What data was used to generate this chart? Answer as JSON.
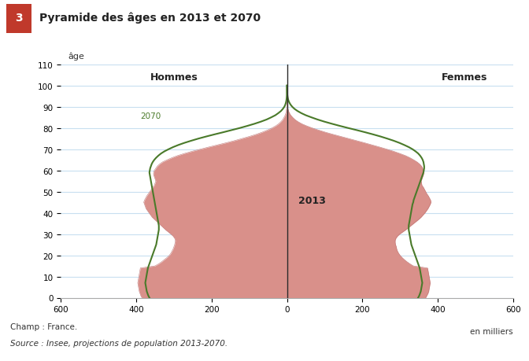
{
  "title": "Pyramide des âges en 2013 et 2070",
  "title_number": "3",
  "ylabel": "âge",
  "xlabel_right": "en milliers",
  "hommes_label": "Hommes",
  "femmes_label": "Femmes",
  "label_2013": "2013",
  "label_2070": "2070",
  "source_line1": "Champ : France.",
  "source_line2": "Source : Insee, projections de population 2013-2070.",
  "xlim": 600,
  "ylim": 110,
  "bar_color": "#d9908a",
  "line_color_2070": "#4a7a2a",
  "background_color": "#ffffff",
  "grid_color": "#c8dff0",
  "header_bg": "#f5ede8",
  "number_bg": "#c0392b",
  "ages": [
    0,
    1,
    2,
    3,
    4,
    5,
    6,
    7,
    8,
    9,
    10,
    11,
    12,
    13,
    14,
    15,
    16,
    17,
    18,
    19,
    20,
    21,
    22,
    23,
    24,
    25,
    26,
    27,
    28,
    29,
    30,
    31,
    32,
    33,
    34,
    35,
    36,
    37,
    38,
    39,
    40,
    41,
    42,
    43,
    44,
    45,
    46,
    47,
    48,
    49,
    50,
    51,
    52,
    53,
    54,
    55,
    56,
    57,
    58,
    59,
    60,
    61,
    62,
    63,
    64,
    65,
    66,
    67,
    68,
    69,
    70,
    71,
    72,
    73,
    74,
    75,
    76,
    77,
    78,
    79,
    80,
    81,
    82,
    83,
    84,
    85,
    86,
    87,
    88,
    89,
    90,
    91,
    92,
    93,
    94,
    95,
    96,
    97,
    98,
    99,
    100
  ],
  "men_2013": [
    385,
    388,
    390,
    392,
    393,
    394,
    395,
    396,
    395,
    394,
    393,
    392,
    391,
    390,
    389,
    350,
    340,
    332,
    325,
    318,
    312,
    308,
    305,
    302,
    300,
    298,
    297,
    296,
    298,
    302,
    308,
    315,
    322,
    328,
    334,
    340,
    346,
    352,
    358,
    362,
    366,
    370,
    374,
    376,
    378,
    380,
    378,
    375,
    372,
    368,
    364,
    360,
    356,
    352,
    350,
    348,
    350,
    352,
    354,
    354,
    352,
    348,
    344,
    338,
    330,
    318,
    305,
    290,
    272,
    252,
    230,
    208,
    185,
    162,
    140,
    120,
    100,
    82,
    66,
    52,
    40,
    30,
    22,
    16,
    11,
    8,
    5,
    3,
    2,
    1.2,
    0.7,
    0.4,
    0.2,
    0.1,
    0.05,
    0.02,
    0.01,
    0.005,
    0.002,
    0.001,
    0.0005
  ],
  "women_2013": [
    368,
    371,
    374,
    376,
    377,
    378,
    379,
    380,
    379,
    378,
    377,
    376,
    375,
    374,
    373,
    335,
    326,
    318,
    311,
    305,
    300,
    296,
    293,
    291,
    290,
    288,
    287,
    287,
    289,
    293,
    299,
    307,
    315,
    322,
    329,
    336,
    343,
    350,
    356,
    361,
    366,
    370,
    374,
    377,
    380,
    382,
    381,
    378,
    375,
    371,
    368,
    365,
    362,
    358,
    357,
    356,
    358,
    360,
    362,
    363,
    362,
    360,
    357,
    352,
    345,
    336,
    326,
    314,
    299,
    283,
    265,
    246,
    226,
    206,
    185,
    164,
    143,
    122,
    102,
    84,
    67,
    52,
    39,
    29,
    21,
    15,
    10,
    6.5,
    4,
    2.5,
    1.5,
    0.9,
    0.5,
    0.25,
    0.12,
    0.06,
    0.02,
    0.01,
    0.004,
    0.002,
    0.0008
  ],
  "men_2070": [
    365,
    368,
    370,
    372,
    373,
    374,
    375,
    376,
    375,
    374,
    373,
    372,
    371,
    370,
    369,
    367,
    365,
    363,
    361,
    359,
    357,
    355,
    353,
    351,
    349,
    347,
    346,
    345,
    344,
    343,
    342,
    341,
    340,
    340,
    340,
    341,
    342,
    343,
    344,
    345,
    346,
    347,
    348,
    349,
    350,
    351,
    352,
    353,
    354,
    355,
    356,
    357,
    358,
    359,
    360,
    361,
    362,
    363,
    364,
    365,
    364,
    363,
    361,
    359,
    356,
    352,
    347,
    341,
    334,
    325,
    314,
    302,
    288,
    272,
    254,
    235,
    214,
    192,
    169,
    147,
    125,
    105,
    86,
    69,
    54,
    42,
    31,
    23,
    16,
    11,
    7,
    4.5,
    2.8,
    1.6,
    0.9,
    0.5,
    0.25,
    0.12,
    0.06,
    0.025,
    0.01
  ],
  "women_2070": [
    348,
    351,
    353,
    355,
    356,
    357,
    358,
    359,
    358,
    357,
    356,
    355,
    354,
    353,
    352,
    350,
    348,
    346,
    344,
    342,
    340,
    338,
    336,
    334,
    332,
    330,
    329,
    328,
    327,
    326,
    325,
    324,
    323,
    323,
    323,
    324,
    325,
    326,
    327,
    328,
    329,
    330,
    331,
    332,
    333,
    335,
    336,
    338,
    340,
    342,
    344,
    346,
    348,
    350,
    352,
    354,
    356,
    358,
    360,
    362,
    363,
    364,
    364,
    363,
    362,
    360,
    357,
    353,
    348,
    341,
    333,
    323,
    311,
    298,
    283,
    266,
    248,
    228,
    207,
    185,
    162,
    140,
    119,
    99,
    81,
    65,
    50,
    38,
    28,
    20,
    14,
    9.5,
    6.2,
    3.8,
    2.3,
    1.3,
    0.7,
    0.35,
    0.16,
    0.07,
    0.03
  ]
}
